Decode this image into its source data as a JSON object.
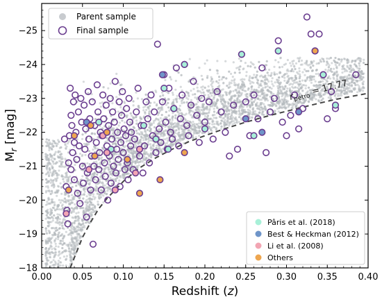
{
  "chart_data": {
    "type": "scatter",
    "xlabel": "Redshift (z)",
    "ylabel": "M_r [mag]",
    "xlim": [
      0.0,
      0.4
    ],
    "ylim": [
      -18,
      -25.8
    ],
    "y_inverted": true,
    "xticks": [
      0.0,
      0.05,
      0.1,
      0.15,
      0.2,
      0.25,
      0.3,
      0.35,
      0.4
    ],
    "xtick_labels": [
      "0.00",
      "0.05",
      "0.10",
      "0.15",
      "0.20",
      "0.25",
      "0.30",
      "0.35",
      "0.40"
    ],
    "yticks": [
      -18,
      -19,
      -20,
      -21,
      -22,
      -23,
      -24,
      -25
    ],
    "ytick_labels": [
      "−18",
      "−19",
      "−20",
      "−21",
      "−22",
      "−23",
      "−24",
      "−25"
    ],
    "limit_curve": {
      "label": "r_petro = 17.77",
      "style": "dashed",
      "color": "#444444",
      "points": [
        [
          0.035,
          -18.0
        ],
        [
          0.04,
          -18.3
        ],
        [
          0.05,
          -18.9
        ],
        [
          0.06,
          -19.35
        ],
        [
          0.07,
          -19.75
        ],
        [
          0.08,
          -20.05
        ],
        [
          0.09,
          -20.3
        ],
        [
          0.1,
          -20.55
        ],
        [
          0.12,
          -20.95
        ],
        [
          0.14,
          -21.25
        ],
        [
          0.16,
          -21.5
        ],
        [
          0.18,
          -21.72
        ],
        [
          0.2,
          -21.9
        ],
        [
          0.22,
          -22.07
        ],
        [
          0.25,
          -22.3
        ],
        [
          0.28,
          -22.5
        ],
        [
          0.3,
          -22.62
        ],
        [
          0.33,
          -22.8
        ],
        [
          0.36,
          -22.97
        ],
        [
          0.4,
          -23.15
        ]
      ]
    },
    "legend_main": {
      "position": "top-left",
      "entries": [
        "Parent sample",
        "Final sample"
      ]
    },
    "legend_categories": {
      "position": "bottom-right",
      "entries": [
        {
          "name": "Pâris et al. (2018)",
          "color": "#a8f0d8"
        },
        {
          "name": "Best & Heckman (2012)",
          "color": "#6f95c9"
        },
        {
          "name": "Li et al. (2008)",
          "color": "#f2a5b3"
        },
        {
          "name": "Others",
          "color": "#eea64f"
        }
      ]
    },
    "series": [
      {
        "name": "Parent sample",
        "color": "#b7bcc0",
        "description_of_density": "dense cloud bounded below by the limit curve",
        "sample_points": [
          [
            0.02,
            -19.5
          ],
          [
            0.03,
            -20.2
          ],
          [
            0.04,
            -20.6
          ],
          [
            0.05,
            -21.0
          ],
          [
            0.07,
            -21.2
          ],
          [
            0.09,
            -21.4
          ],
          [
            0.1,
            -21.6
          ],
          [
            0.12,
            -21.7
          ],
          [
            0.14,
            -21.9
          ],
          [
            0.16,
            -22.0
          ],
          [
            0.18,
            -22.2
          ],
          [
            0.2,
            -22.4
          ],
          [
            0.22,
            -22.5
          ],
          [
            0.25,
            -22.6
          ],
          [
            0.28,
            -22.8
          ],
          [
            0.3,
            -22.9
          ],
          [
            0.34,
            -23.1
          ],
          [
            0.38,
            -23.2
          ]
        ]
      },
      {
        "name": "Final sample",
        "edgecolor": "#6a3d8f",
        "points": [
          [
            0.028,
            -21.8
          ],
          [
            0.03,
            -20.4
          ],
          [
            0.031,
            -19.7
          ],
          [
            0.032,
            -19.3
          ],
          [
            0.033,
            -21.1
          ],
          [
            0.034,
            -21.9
          ],
          [
            0.035,
            -23.3
          ],
          [
            0.036,
            -22.5
          ],
          [
            0.036,
            -20.9
          ],
          [
            0.037,
            -22.2
          ],
          [
            0.038,
            -21.4
          ],
          [
            0.039,
            -22.9
          ],
          [
            0.04,
            -20.6
          ],
          [
            0.04,
            -21.7
          ],
          [
            0.041,
            -23.1
          ],
          [
            0.042,
            -22.0
          ],
          [
            0.043,
            -21.2
          ],
          [
            0.044,
            -20.2
          ],
          [
            0.045,
            -22.6
          ],
          [
            0.046,
            -21.6
          ],
          [
            0.047,
            -19.9
          ],
          [
            0.048,
            -23.0
          ],
          [
            0.049,
            -22.3
          ],
          [
            0.05,
            -21.0
          ],
          [
            0.051,
            -20.5
          ],
          [
            0.052,
            -22.8
          ],
          [
            0.053,
            -21.5
          ],
          [
            0.054,
            -22.1
          ],
          [
            0.055,
            -19.5
          ],
          [
            0.056,
            -20.8
          ],
          [
            0.057,
            -23.2
          ],
          [
            0.058,
            -21.8
          ],
          [
            0.059,
            -22.4
          ],
          [
            0.06,
            -20.3
          ],
          [
            0.061,
            -21.3
          ],
          [
            0.062,
            -22.9
          ],
          [
            0.063,
            -18.7
          ],
          [
            0.064,
            -21.0
          ],
          [
            0.065,
            -22.2
          ],
          [
            0.066,
            -20.6
          ],
          [
            0.067,
            -21.7
          ],
          [
            0.068,
            -23.4
          ],
          [
            0.069,
            -22.6
          ],
          [
            0.07,
            -20.9
          ],
          [
            0.071,
            -21.4
          ],
          [
            0.072,
            -22.0
          ],
          [
            0.073,
            -20.3
          ],
          [
            0.074,
            -21.9
          ],
          [
            0.075,
            -23.1
          ],
          [
            0.076,
            -22.4
          ],
          [
            0.077,
            -21.1
          ],
          [
            0.078,
            -20.7
          ],
          [
            0.079,
            -22.8
          ],
          [
            0.08,
            -21.6
          ],
          [
            0.081,
            -20.0
          ],
          [
            0.082,
            -22.2
          ],
          [
            0.083,
            -21.3
          ],
          [
            0.084,
            -23.0
          ],
          [
            0.085,
            -20.5
          ],
          [
            0.086,
            -21.8
          ],
          [
            0.087,
            -22.6
          ],
          [
            0.088,
            -21.0
          ],
          [
            0.089,
            -22.3
          ],
          [
            0.09,
            -23.5
          ],
          [
            0.091,
            -20.8
          ],
          [
            0.092,
            -21.5
          ],
          [
            0.093,
            -22.0
          ],
          [
            0.094,
            -21.2
          ],
          [
            0.095,
            -22.9
          ],
          [
            0.096,
            -20.4
          ],
          [
            0.097,
            -21.7
          ],
          [
            0.098,
            -22.5
          ],
          [
            0.099,
            -23.2
          ],
          [
            0.1,
            -21.4
          ],
          [
            0.101,
            -22.1
          ],
          [
            0.102,
            -20.9
          ],
          [
            0.103,
            -21.9
          ],
          [
            0.104,
            -22.7
          ],
          [
            0.105,
            -21.1
          ],
          [
            0.106,
            -20.6
          ],
          [
            0.107,
            -23.0
          ],
          [
            0.108,
            -22.3
          ],
          [
            0.109,
            -21.6
          ],
          [
            0.11,
            -22.0
          ],
          [
            0.112,
            -20.9
          ],
          [
            0.114,
            -21.8
          ],
          [
            0.116,
            -22.6
          ],
          [
            0.118,
            -23.3
          ],
          [
            0.12,
            -21.3
          ],
          [
            0.122,
            -22.2
          ],
          [
            0.124,
            -20.8
          ],
          [
            0.126,
            -21.6
          ],
          [
            0.128,
            -22.9
          ],
          [
            0.13,
            -22.4
          ],
          [
            0.132,
            -21.1
          ],
          [
            0.134,
            -23.1
          ],
          [
            0.136,
            -21.9
          ],
          [
            0.138,
            -22.6
          ],
          [
            0.14,
            -21.4
          ],
          [
            0.142,
            -24.6
          ],
          [
            0.144,
            -22.1
          ],
          [
            0.146,
            -21.7
          ],
          [
            0.148,
            -22.9
          ],
          [
            0.15,
            -23.7
          ],
          [
            0.152,
            -22.3
          ],
          [
            0.154,
            -21.5
          ],
          [
            0.156,
            -23.3
          ],
          [
            0.158,
            -22.0
          ],
          [
            0.16,
            -21.8
          ],
          [
            0.162,
            -22.7
          ],
          [
            0.165,
            -23.9
          ],
          [
            0.168,
            -21.6
          ],
          [
            0.17,
            -22.4
          ],
          [
            0.172,
            -23.1
          ],
          [
            0.175,
            -24.0
          ],
          [
            0.178,
            -22.2
          ],
          [
            0.18,
            -21.9
          ],
          [
            0.183,
            -22.8
          ],
          [
            0.186,
            -23.5
          ],
          [
            0.19,
            -22.5
          ],
          [
            0.193,
            -21.7
          ],
          [
            0.196,
            -23.0
          ],
          [
            0.2,
            -22.3
          ],
          [
            0.205,
            -22.9
          ],
          [
            0.21,
            -21.8
          ],
          [
            0.215,
            -23.2
          ],
          [
            0.22,
            -22.6
          ],
          [
            0.225,
            -22.0
          ],
          [
            0.23,
            -21.3
          ],
          [
            0.235,
            -22.8
          ],
          [
            0.24,
            -21.5
          ],
          [
            0.245,
            -24.3
          ],
          [
            0.25,
            -22.9
          ],
          [
            0.255,
            -21.9
          ],
          [
            0.26,
            -23.1
          ],
          [
            0.265,
            -22.4
          ],
          [
            0.27,
            -23.9
          ],
          [
            0.275,
            -21.4
          ],
          [
            0.28,
            -22.6
          ],
          [
            0.285,
            -23.0
          ],
          [
            0.29,
            -24.7
          ],
          [
            0.295,
            -22.3
          ],
          [
            0.3,
            -21.9
          ],
          [
            0.305,
            -22.5
          ],
          [
            0.31,
            -23.1
          ],
          [
            0.315,
            -22.1
          ],
          [
            0.32,
            -22.7
          ],
          [
            0.325,
            -25.4
          ],
          [
            0.33,
            -24.9
          ],
          [
            0.335,
            -24.4
          ],
          [
            0.34,
            -24.9
          ],
          [
            0.345,
            -23.7
          ],
          [
            0.35,
            -22.4
          ],
          [
            0.355,
            -23.2
          ],
          [
            0.36,
            -22.7
          ],
          [
            0.385,
            -23.7
          ]
        ]
      }
    ],
    "highlighted_points": [
      {
        "name": "Pâris et al. (2018)",
        "color": "#a8f0d8",
        "points": [
          [
            0.07,
            -22.3
          ],
          [
            0.085,
            -21.5
          ],
          [
            0.125,
            -22.2
          ],
          [
            0.14,
            -21.8
          ],
          [
            0.15,
            -23.3
          ],
          [
            0.162,
            -22.7
          ],
          [
            0.175,
            -24.0
          ],
          [
            0.245,
            -24.3
          ],
          [
            0.29,
            -24.4
          ],
          [
            0.345,
            -23.7
          ],
          [
            0.36,
            -22.8
          ],
          [
            0.26,
            -21.9
          ],
          [
            0.2,
            -22.1
          ],
          [
            0.155,
            -21.5
          ]
        ]
      },
      {
        "name": "Best & Heckman (2012)",
        "color": "#6f95c9",
        "points": [
          [
            0.055,
            -22.3
          ],
          [
            0.148,
            -23.7
          ],
          [
            0.25,
            -22.4
          ],
          [
            0.27,
            -22.0
          ],
          [
            0.315,
            -22.6
          ]
        ]
      },
      {
        "name": "Li et al. (2008)",
        "color": "#f2a5b3",
        "points": [
          [
            0.03,
            -19.6
          ],
          [
            0.058,
            -20.9
          ],
          [
            0.08,
            -21.4
          ],
          [
            0.09,
            -20.3
          ],
          [
            0.115,
            -20.8
          ],
          [
            0.12,
            -21.5
          ],
          [
            0.075,
            -21.9
          ]
        ]
      },
      {
        "name": "Others",
        "color": "#eea64f",
        "points": [
          [
            0.033,
            -20.3
          ],
          [
            0.04,
            -21.9
          ],
          [
            0.065,
            -21.3
          ],
          [
            0.08,
            -22.0
          ],
          [
            0.105,
            -21.2
          ],
          [
            0.12,
            -20.2
          ],
          [
            0.145,
            -20.6
          ],
          [
            0.175,
            -21.4
          ],
          [
            0.335,
            -24.4
          ],
          [
            0.06,
            -22.2
          ]
        ]
      }
    ]
  }
}
